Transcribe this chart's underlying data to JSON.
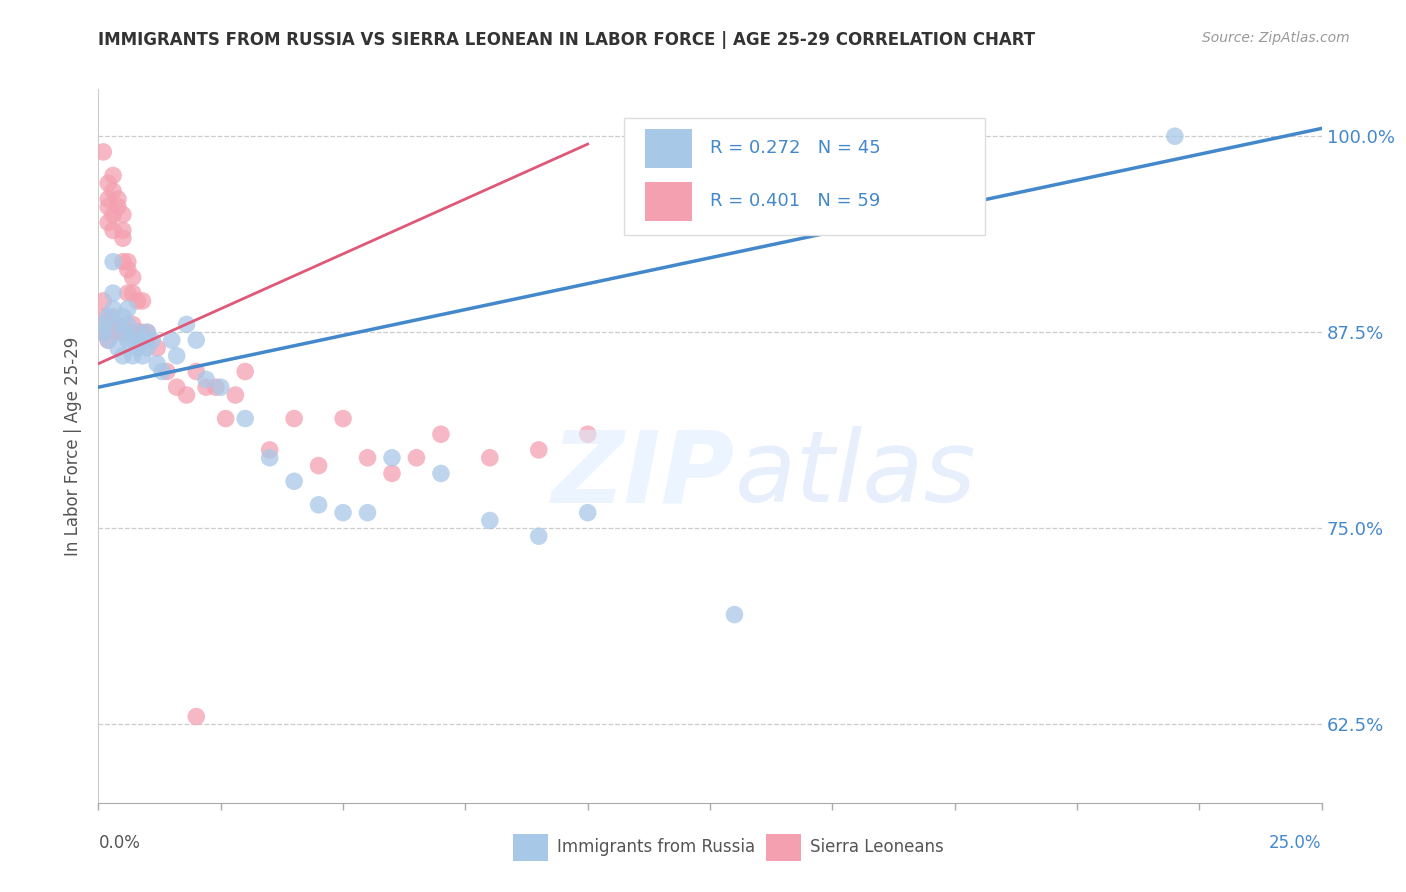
{
  "title": "IMMIGRANTS FROM RUSSIA VS SIERRA LEONEAN IN LABOR FORCE | AGE 25-29 CORRELATION CHART",
  "source": "Source: ZipAtlas.com",
  "ylabel": "In Labor Force | Age 25-29",
  "xmin": 0.0,
  "xmax": 0.25,
  "ymin": 0.575,
  "ymax": 1.03,
  "blue_color": "#a8c8e8",
  "pink_color": "#f4a0b0",
  "line_blue": "#4488cc",
  "line_pink": "#e05878",
  "text_blue": "#4488cc",
  "legend_text": "R = 0.272   N = 45",
  "legend_text2": "R = 0.401   N = 59",
  "blue_scatter_x": [
    0.001,
    0.001,
    0.002,
    0.002,
    0.003,
    0.003,
    0.003,
    0.004,
    0.004,
    0.005,
    0.005,
    0.005,
    0.006,
    0.006,
    0.006,
    0.007,
    0.007,
    0.008,
    0.008,
    0.009,
    0.009,
    0.01,
    0.01,
    0.011,
    0.012,
    0.013,
    0.015,
    0.016,
    0.018,
    0.02,
    0.022,
    0.025,
    0.03,
    0.035,
    0.04,
    0.045,
    0.05,
    0.055,
    0.06,
    0.07,
    0.08,
    0.09,
    0.1,
    0.13,
    0.22
  ],
  "blue_scatter_y": [
    0.875,
    0.88,
    0.87,
    0.885,
    0.92,
    0.9,
    0.89,
    0.88,
    0.865,
    0.875,
    0.885,
    0.86,
    0.87,
    0.88,
    0.89,
    0.87,
    0.86,
    0.875,
    0.865,
    0.87,
    0.86,
    0.875,
    0.865,
    0.87,
    0.855,
    0.85,
    0.87,
    0.86,
    0.88,
    0.87,
    0.845,
    0.84,
    0.82,
    0.795,
    0.78,
    0.765,
    0.76,
    0.76,
    0.795,
    0.785,
    0.755,
    0.745,
    0.76,
    0.695,
    1.0
  ],
  "pink_scatter_x": [
    0.001,
    0.001,
    0.001,
    0.001,
    0.002,
    0.002,
    0.002,
    0.002,
    0.002,
    0.003,
    0.003,
    0.003,
    0.003,
    0.003,
    0.004,
    0.004,
    0.004,
    0.004,
    0.005,
    0.005,
    0.005,
    0.005,
    0.005,
    0.006,
    0.006,
    0.006,
    0.006,
    0.007,
    0.007,
    0.007,
    0.008,
    0.008,
    0.008,
    0.009,
    0.009,
    0.01,
    0.01,
    0.012,
    0.014,
    0.016,
    0.018,
    0.02,
    0.022,
    0.024,
    0.026,
    0.028,
    0.03,
    0.035,
    0.04,
    0.045,
    0.05,
    0.055,
    0.06,
    0.065,
    0.07,
    0.08,
    0.09,
    0.1,
    0.02
  ],
  "pink_scatter_y": [
    0.875,
    0.885,
    0.895,
    0.99,
    0.96,
    0.97,
    0.945,
    0.955,
    0.87,
    0.965,
    0.975,
    0.94,
    0.95,
    0.885,
    0.955,
    0.96,
    0.88,
    0.875,
    0.94,
    0.935,
    0.92,
    0.95,
    0.875,
    0.92,
    0.915,
    0.9,
    0.875,
    0.88,
    0.91,
    0.9,
    0.895,
    0.875,
    0.87,
    0.895,
    0.875,
    0.875,
    0.87,
    0.865,
    0.85,
    0.84,
    0.835,
    0.85,
    0.84,
    0.84,
    0.82,
    0.835,
    0.85,
    0.8,
    0.82,
    0.79,
    0.82,
    0.795,
    0.785,
    0.795,
    0.81,
    0.795,
    0.8,
    0.81,
    0.63
  ],
  "blue_line_x": [
    0.0,
    0.25
  ],
  "blue_line_y": [
    0.84,
    1.005
  ],
  "pink_line_x": [
    0.0,
    0.1
  ],
  "pink_line_y": [
    0.855,
    0.995
  ],
  "grid_yticks": [
    0.625,
    0.75,
    0.875,
    1.0
  ],
  "grid_yticklabels": [
    "62.5%",
    "75.0%",
    "87.5%",
    "100.0%"
  ]
}
